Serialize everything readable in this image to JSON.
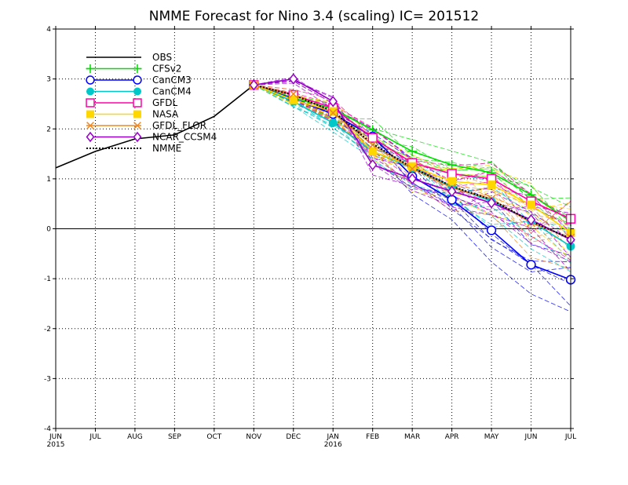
{
  "chart_data": {
    "type": "line",
    "title": "NMME Forecast for Nino 3.4 (scaling) IC= 201512",
    "xlabel": "",
    "ylabel": "",
    "x_ticks": [
      "JUN",
      "JUL",
      "AUG",
      "SEP",
      "OCT",
      "NOV",
      "DEC",
      "JAN",
      "FEB",
      "MAR",
      "APR",
      "MAY",
      "JUN",
      "JUL"
    ],
    "x_year_labels": [
      {
        "index": 0,
        "label": "2015"
      },
      {
        "index": 7,
        "label": "2016"
      }
    ],
    "ylim": [
      -4,
      4
    ],
    "y_ticks": [
      "-4",
      "-3",
      "-2",
      "-1",
      "0",
      "1",
      "2",
      "3",
      "4"
    ],
    "grid": true,
    "zero_line": true,
    "legend_position": "top-left",
    "series": [
      {
        "name": "OBS",
        "color": "#000000",
        "marker": "none",
        "dash": "solid",
        "x": [
          0,
          1,
          2,
          3,
          4,
          5
        ],
        "values": [
          1.22,
          1.55,
          1.8,
          1.88,
          2.25,
          2.88
        ]
      },
      {
        "name": "CFSv2",
        "color": "#00dd00",
        "marker": "plus",
        "dash": "solid",
        "x": [
          5,
          6,
          7,
          8,
          9,
          10,
          11,
          12,
          13
        ],
        "values": [
          2.88,
          2.62,
          2.4,
          1.98,
          1.55,
          1.28,
          1.12,
          0.68,
          0.15
        ]
      },
      {
        "name": "CanCM3",
        "color": "#0000ff",
        "marker": "open-circle",
        "dash": "solid",
        "x": [
          5,
          6,
          7,
          8,
          9,
          10,
          11,
          12,
          13
        ],
        "values": [
          2.88,
          2.6,
          2.3,
          1.85,
          1.05,
          0.58,
          -0.03,
          -0.72,
          -1.02
        ]
      },
      {
        "name": "CanCM4",
        "color": "#00c8c8",
        "marker": "filled-circle",
        "dash": "solid",
        "x": [
          5,
          6,
          7,
          8,
          9,
          10,
          11,
          12,
          13
        ],
        "values": [
          2.88,
          2.55,
          2.12,
          1.55,
          1.22,
          0.85,
          0.55,
          0.15,
          -0.35
        ]
      },
      {
        "name": "GFDL",
        "color": "#ff00aa",
        "marker": "open-square",
        "dash": "solid",
        "x": [
          5,
          6,
          7,
          8,
          9,
          10,
          11,
          12,
          13
        ],
        "values": [
          2.88,
          2.68,
          2.42,
          1.82,
          1.32,
          1.1,
          1.0,
          0.55,
          0.2
        ]
      },
      {
        "name": "NASA",
        "color": "#ffd700",
        "marker": "filled-square",
        "dash": "solid",
        "x": [
          5,
          6,
          7,
          8,
          9,
          10,
          11,
          12,
          13
        ],
        "values": [
          2.88,
          2.58,
          2.35,
          1.55,
          1.25,
          0.95,
          0.88,
          0.48,
          -0.08
        ]
      },
      {
        "name": "GFDL_FLOR",
        "color": "#ee8822",
        "marker": "x",
        "dash": "solid",
        "x": [
          5,
          6,
          7,
          8,
          9,
          10,
          11,
          12,
          13
        ],
        "values": [
          2.88,
          2.7,
          2.32,
          1.68,
          1.2,
          0.82,
          0.6,
          0.12,
          -0.18
        ]
      },
      {
        "name": "NCAR_CCSM4",
        "color": "#9900cc",
        "marker": "open-diamond",
        "dash": "solid",
        "x": [
          5,
          6,
          7,
          8,
          9,
          10,
          11,
          12,
          13
        ],
        "values": [
          2.88,
          3.0,
          2.55,
          1.28,
          1.0,
          0.75,
          0.52,
          0.18,
          -0.22
        ]
      },
      {
        "name": "NMME",
        "color": "#000000",
        "marker": "none",
        "dash": "dotted",
        "x": [
          5,
          6,
          7,
          8,
          9,
          10,
          11,
          12,
          13
        ],
        "values": [
          2.88,
          2.68,
          2.35,
          1.7,
          1.22,
          0.85,
          0.58,
          0.15,
          -0.2
        ]
      }
    ]
  }
}
